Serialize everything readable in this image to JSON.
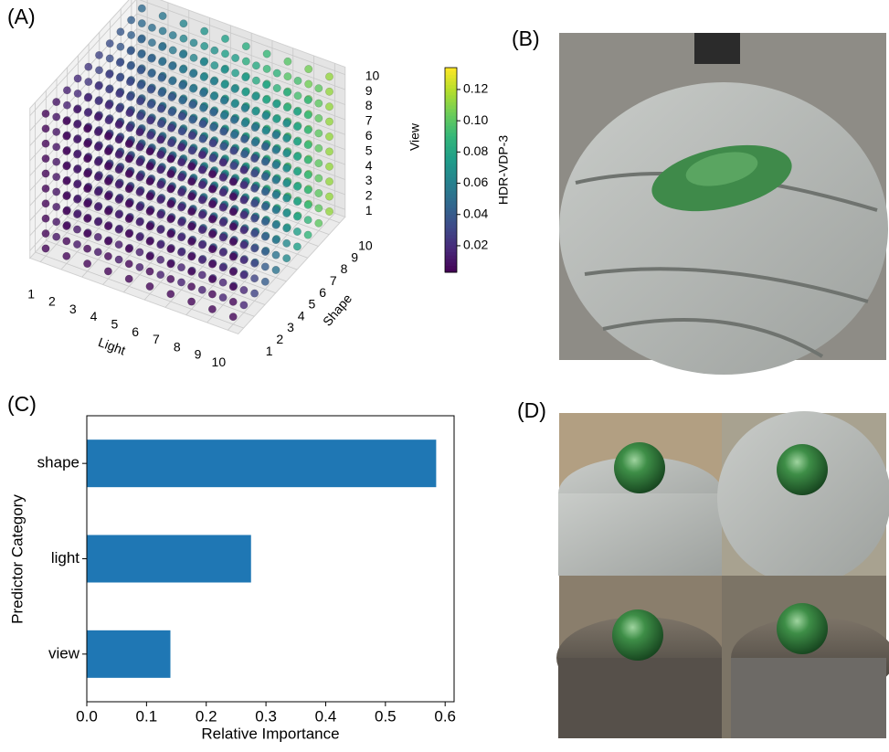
{
  "chart_data": [
    {
      "type": "scatter3d",
      "panel_label": "(A)",
      "x_label": "Light",
      "y_label": "Shape",
      "z_label": "View",
      "xlim": [
        0.5,
        10.5
      ],
      "ylim": [
        0.5,
        10.5
      ],
      "zlim": [
        0.5,
        10.5
      ],
      "xticks": [
        1,
        2,
        3,
        4,
        5,
        6,
        7,
        8,
        9,
        10
      ],
      "yticks": [
        1,
        2,
        3,
        4,
        5,
        6,
        7,
        8,
        9,
        10
      ],
      "zticks": [
        1,
        2,
        3,
        4,
        5,
        6,
        7,
        8,
        9,
        10
      ],
      "colorbar": {
        "label": "HDR-VDP-3",
        "lim": [
          0.003,
          0.134
        ],
        "ticks": [
          0.02,
          0.04,
          0.06,
          0.08,
          {
            "value": 0.1,
            "label": "0.10"
          },
          0.12
        ]
      },
      "values": [
        [
          0.005,
          0.005,
          0.005,
          0.005,
          0.005,
          0.005,
          0.005,
          0.005,
          0.005,
          0.005
        ],
        [
          0.01,
          0.011,
          0.011,
          0.012,
          0.013,
          0.014,
          0.015,
          0.015,
          0.016,
          0.017
        ],
        [
          0.015,
          0.016,
          0.018,
          0.019,
          0.021,
          0.023,
          0.024,
          0.026,
          0.027,
          0.029
        ],
        [
          0.019,
          0.022,
          0.024,
          0.027,
          0.029,
          0.031,
          0.034,
          0.036,
          0.039,
          0.041
        ],
        [
          0.024,
          0.027,
          0.031,
          0.034,
          0.037,
          0.04,
          0.043,
          0.047,
          0.05,
          0.053
        ],
        [
          0.029,
          0.033,
          0.037,
          0.041,
          0.045,
          0.049,
          0.053,
          0.057,
          0.061,
          0.065
        ],
        [
          0.034,
          0.039,
          0.043,
          0.048,
          0.053,
          0.058,
          0.063,
          0.067,
          0.072,
          0.077
        ],
        [
          0.039,
          0.044,
          0.05,
          0.055,
          0.061,
          0.067,
          0.072,
          0.078,
          0.083,
          0.089
        ],
        [
          0.043,
          0.05,
          0.056,
          0.063,
          0.069,
          0.075,
          0.082,
          0.088,
          0.095,
          0.101
        ],
        [
          0.048,
          0.055,
          0.063,
          0.07,
          0.077,
          0.084,
          0.091,
          0.099,
          0.106,
          0.113
        ]
      ]
    },
    {
      "type": "barh",
      "panel_label": "(C)",
      "categories": [
        "shape",
        "light",
        "view"
      ],
      "values": [
        0.585,
        0.275,
        0.14
      ],
      "color": "#1f77b4",
      "xlim": [
        0,
        0.615
      ],
      "xticks": [
        {
          "value": 0,
          "label": "0.0"
        },
        0.1,
        0.2,
        0.3,
        0.4,
        0.5,
        0.6
      ],
      "x_label": "Relative Importance",
      "y_label": "Predictor Category"
    }
  ],
  "panels": [
    {
      "label": "(B)"
    },
    {
      "label": "(D)"
    }
  ]
}
